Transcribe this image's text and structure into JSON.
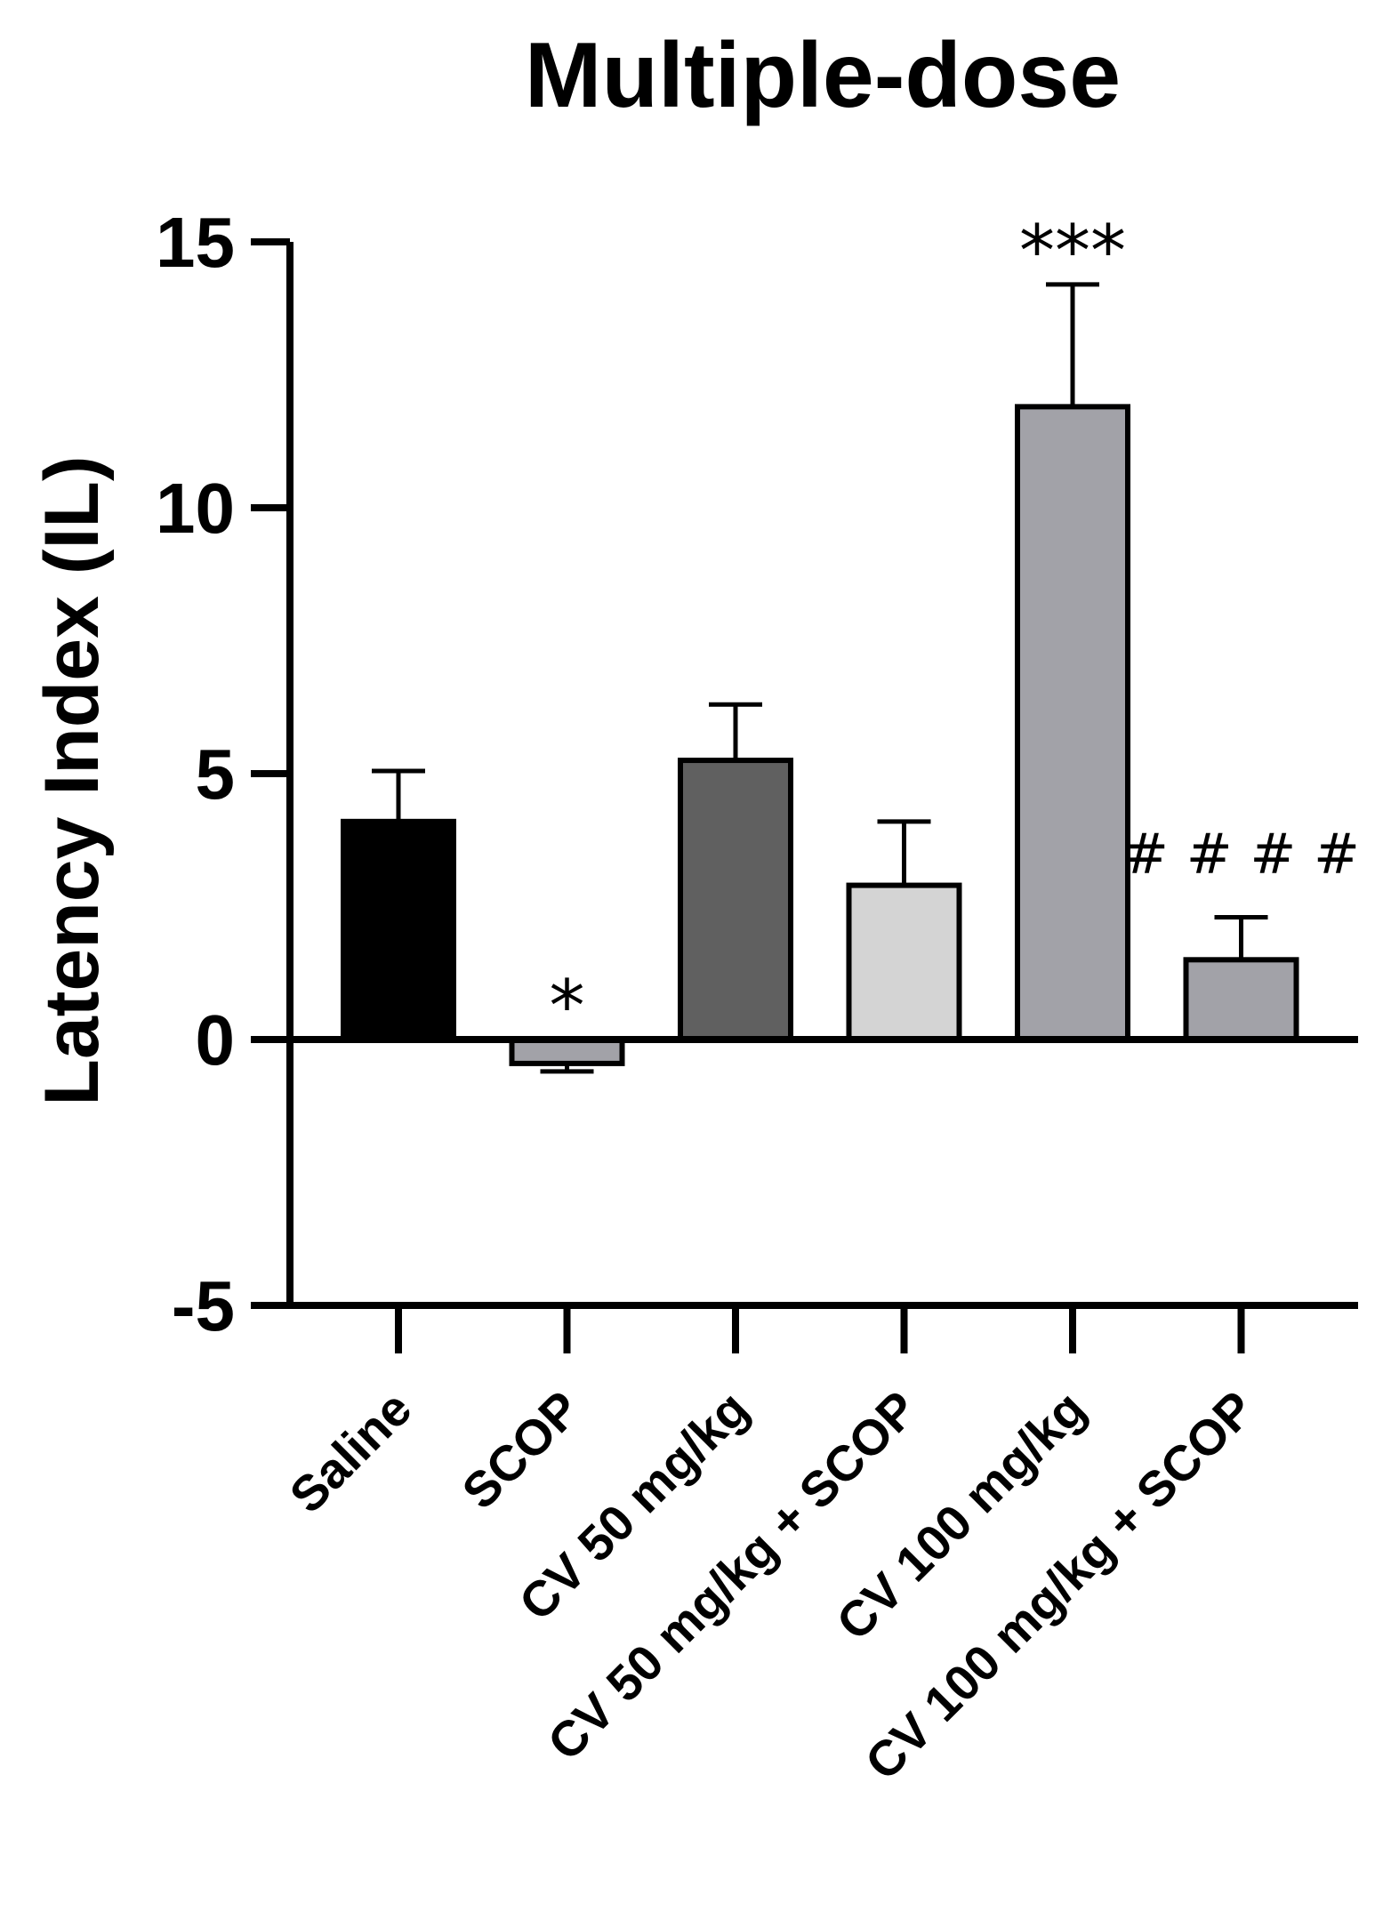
{
  "chart_data": {
    "type": "bar",
    "title": "Multiple-dose",
    "xlabel": "",
    "ylabel": "Latency Index (IL)",
    "ylim": [
      -5,
      15
    ],
    "yticks": [
      "15",
      "10",
      "5",
      "0",
      "-5"
    ],
    "ytick_values": [
      15,
      10,
      5,
      0,
      -5
    ],
    "categories": [
      "Saline",
      "SCOP",
      "CV 50 mg/kg",
      "CV 50 mg/kg + SCOP",
      "CV 100 mg/kg",
      "CV 100 mg/kg + SCOP"
    ],
    "values": [
      4.1,
      -0.45,
      5.25,
      2.9,
      11.9,
      1.5
    ],
    "errors": [
      0.95,
      0.15,
      1.05,
      1.2,
      2.3,
      0.8
    ],
    "colors": [
      "#000000",
      "#a2a2a8",
      "#606060",
      "#d4d4d4",
      "#a2a2a8",
      "#a2a2a8"
    ],
    "annotations": [
      "",
      "*",
      "",
      "",
      "***",
      "# # # #"
    ]
  }
}
